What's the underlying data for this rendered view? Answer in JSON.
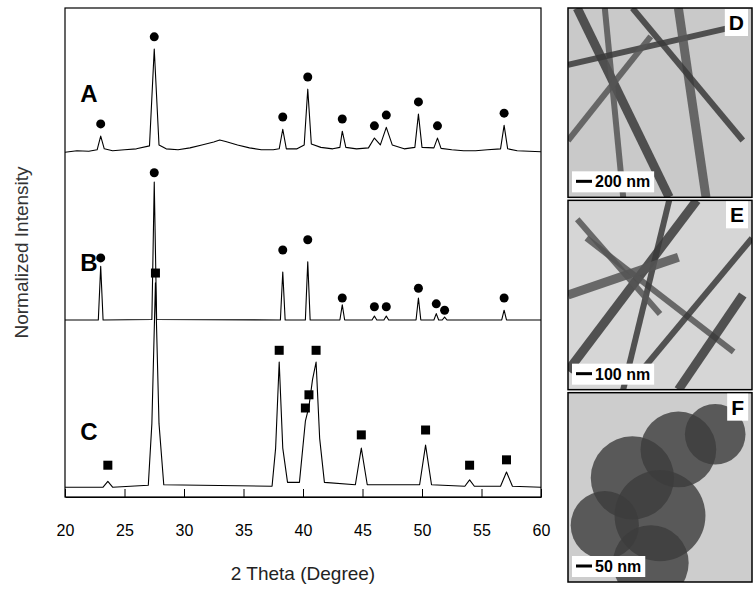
{
  "chart_data": {
    "type": "line",
    "x_label": "2 Theta (Degree)",
    "y_label": "Normalized Intensity",
    "xlim": [
      20,
      60
    ],
    "xticks": [
      20,
      25,
      30,
      35,
      40,
      45,
      50,
      55,
      60
    ],
    "ylim": [
      0,
      10
    ],
    "tick_labels": "x",
    "series": [
      {
        "type": "line",
        "color": "#000000",
        "x": [
          20,
          21,
          22,
          22.7,
          23.0,
          23.3,
          24,
          25,
          26,
          27.1,
          27.5,
          27.9,
          28.5,
          29.5,
          30.5,
          31.5,
          32.5,
          33,
          33.5,
          34.5,
          35.5,
          36.5,
          37.5,
          38.0,
          38.3,
          38.6,
          39.5,
          40.1,
          40.4,
          40.7,
          41.5,
          42.5,
          43.1,
          43.3,
          43.6,
          44.5,
          45.5,
          46.0,
          46.5,
          47.0,
          47.5,
          48.5,
          49.4,
          49.7,
          50.0,
          51.0,
          51.3,
          51.6,
          52.5,
          53.5,
          54.5,
          55.5,
          56.6,
          56.9,
          57.2,
          58,
          59,
          60
        ],
        "values": [
          7.05,
          7.08,
          7.07,
          7.1,
          7.38,
          7.12,
          7.08,
          7.1,
          7.12,
          7.18,
          9.16,
          7.2,
          7.12,
          7.1,
          7.14,
          7.2,
          7.26,
          7.3,
          7.27,
          7.2,
          7.14,
          7.1,
          7.1,
          7.12,
          7.52,
          7.12,
          7.12,
          7.2,
          8.34,
          7.22,
          7.15,
          7.12,
          7.15,
          7.48,
          7.15,
          7.12,
          7.14,
          7.34,
          7.2,
          7.56,
          7.2,
          7.12,
          7.15,
          7.83,
          7.15,
          7.14,
          7.34,
          7.13,
          7.1,
          7.08,
          7.08,
          7.1,
          7.12,
          7.6,
          7.12,
          7.08,
          7.07,
          7.06
        ]
      },
      {
        "type": "scatter",
        "marker": "circle",
        "color": "#000000",
        "x": [
          23.0,
          27.5,
          38.3,
          40.4,
          43.3,
          46.0,
          47.0,
          49.7,
          51.3,
          56.9
        ],
        "values": [
          7.63,
          9.41,
          7.77,
          8.59,
          7.73,
          7.59,
          7.81,
          8.08,
          7.59,
          7.85
        ]
      },
      {
        "type": "line",
        "color": "#000000",
        "x": [
          20,
          22.8,
          23.0,
          23.2,
          27.3,
          27.5,
          27.7,
          38.1,
          38.3,
          38.5,
          40.2,
          40.4,
          40.6,
          43.1,
          43.3,
          43.5,
          45.8,
          46.0,
          46.2,
          46.8,
          47.0,
          47.2,
          49.5,
          49.7,
          49.9,
          51.0,
          51.2,
          51.4,
          51.7,
          51.9,
          52.1,
          56.7,
          56.9,
          57.1,
          60
        ],
        "values": [
          3.62,
          3.62,
          4.72,
          3.62,
          3.63,
          6.44,
          3.63,
          3.62,
          4.6,
          3.62,
          3.62,
          4.81,
          3.62,
          3.62,
          3.93,
          3.62,
          3.62,
          3.7,
          3.62,
          3.62,
          3.7,
          3.62,
          3.62,
          4.07,
          3.62,
          3.62,
          3.75,
          3.62,
          3.62,
          3.68,
          3.62,
          3.62,
          3.82,
          3.62,
          3.62
        ]
      },
      {
        "type": "scatter",
        "marker": "circle",
        "color": "#000000",
        "x": [
          23.0,
          27.5,
          38.3,
          40.4,
          43.3,
          46.0,
          47.0,
          49.7,
          51.2,
          51.9,
          56.9
        ],
        "values": [
          4.89,
          6.63,
          5.05,
          5.26,
          4.07,
          3.89,
          3.89,
          4.27,
          3.95,
          3.82,
          4.07
        ]
      },
      {
        "type": "line",
        "color": "#000000",
        "x": [
          20,
          23.2,
          23.6,
          24.0,
          27.0,
          27.3,
          27.6,
          27.9,
          28.3,
          37.4,
          37.7,
          38.0,
          38.3,
          38.7,
          39.7,
          40.2,
          40.5,
          40.8,
          41.1,
          41.4,
          41.8,
          44.4,
          44.9,
          45.4,
          49.8,
          50.3,
          50.8,
          53.6,
          54.0,
          54.4,
          56.6,
          57.1,
          57.6,
          60
        ],
        "values": [
          0.2,
          0.2,
          0.32,
          0.2,
          0.24,
          1.5,
          4.38,
          1.5,
          0.25,
          0.22,
          1.0,
          2.76,
          1.0,
          0.3,
          0.3,
          1.55,
          1.85,
          2.4,
          2.76,
          1.2,
          0.3,
          0.25,
          1.0,
          0.25,
          0.25,
          1.06,
          0.25,
          0.22,
          0.35,
          0.22,
          0.22,
          0.51,
          0.22,
          0.2
        ]
      },
      {
        "type": "scatter",
        "marker": "square",
        "color": "#000000",
        "x": [
          23.6,
          27.6,
          38.0,
          40.2,
          40.5,
          41.1,
          44.9,
          50.3,
          54.0,
          57.1
        ],
        "values": [
          0.65,
          4.58,
          3.0,
          1.82,
          2.09,
          3.0,
          1.27,
          1.37,
          0.65,
          0.76
        ]
      }
    ],
    "annotations": [
      {
        "text": "A",
        "x": 22.0,
        "y": 8.2
      },
      {
        "text": "B",
        "x": 22.0,
        "y": 4.76
      },
      {
        "text": "C",
        "x": 22.0,
        "y": 1.29
      }
    ]
  },
  "images": [
    {
      "label": "D",
      "scale_bar": "200 nm"
    },
    {
      "label": "E",
      "scale_bar": "100 nm"
    },
    {
      "label": "F",
      "scale_bar": "50 nm"
    }
  ]
}
